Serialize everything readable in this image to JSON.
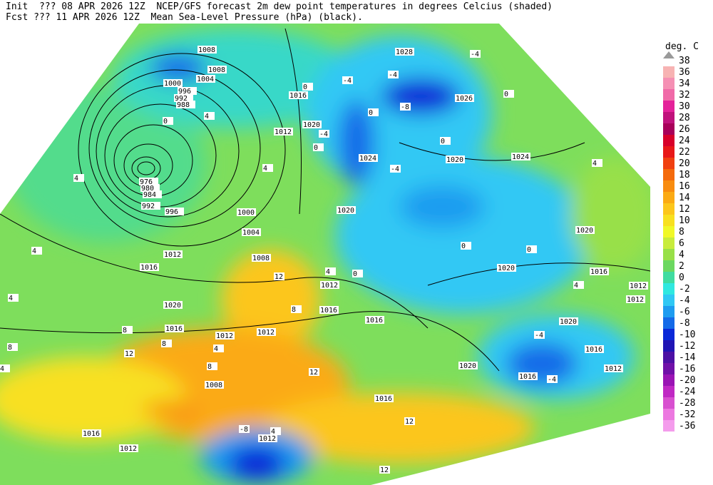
{
  "header": {
    "line1": "Init  ??? 08 APR 2026 12Z  NCEP/GFS forecast 2m dew point temperatures in degrees Celcius (shaded)",
    "line2": "Fcst ??? 11 APR 2026 12Z  Mean Sea-Level Pressure (hPa) (black)."
  },
  "legend": {
    "title": "deg. C",
    "labels": [
      38,
      36,
      34,
      32,
      30,
      28,
      26,
      24,
      22,
      20,
      18,
      16,
      14,
      12,
      10,
      8,
      6,
      4,
      2,
      0,
      -2,
      -4,
      -6,
      -8,
      -10,
      -12,
      -14,
      -16,
      -20,
      -24,
      -28,
      -32,
      -36
    ],
    "colors": [
      "#f7b3b3",
      "#f590b4",
      "#f06aa8",
      "#e4229a",
      "#c0127c",
      "#a8005a",
      "#d8002a",
      "#e81818",
      "#f04010",
      "#f46a0c",
      "#f88c10",
      "#fbaa14",
      "#fcc61c",
      "#f8e020",
      "#f0f828",
      "#c8ec3c",
      "#98e048",
      "#6cd860",
      "#40dca0",
      "#30e8e0",
      "#30c8f4",
      "#1e9cf0",
      "#146ae8",
      "#0a28d8",
      "#2014b4",
      "#4c10a4",
      "#7010a8",
      "#9a14b4",
      "#c028c4",
      "#d850d0",
      "#ec78e0",
      "#f49cec"
    ]
  },
  "map": {
    "pressure_labels": [
      1008,
      1008,
      1004,
      1000,
      996,
      992,
      988,
      976,
      980,
      984,
      992,
      996,
      1000,
      1004,
      1012,
      1016,
      1008,
      1020,
      1016,
      1012,
      1012,
      1008,
      1016,
      1012,
      1012,
      1016,
      1016,
      1016,
      1012,
      1016,
      1020,
      1012,
      1024,
      1020,
      1020,
      1024,
      1028,
      1026,
      1020,
      1020,
      1016,
      1012,
      1012,
      1020,
      1016,
      1012,
      1020,
      1016
    ],
    "dewpoint_labels": [
      -4,
      -4,
      -8,
      0,
      -4,
      4,
      0,
      4,
      4,
      4,
      8,
      4,
      8,
      12,
      8,
      4,
      8,
      12,
      8,
      4,
      0,
      0,
      0,
      4,
      -4,
      -4,
      12,
      12,
      12,
      -8,
      4,
      0,
      4,
      -4,
      4,
      0,
      -4,
      0,
      0
    ]
  }
}
